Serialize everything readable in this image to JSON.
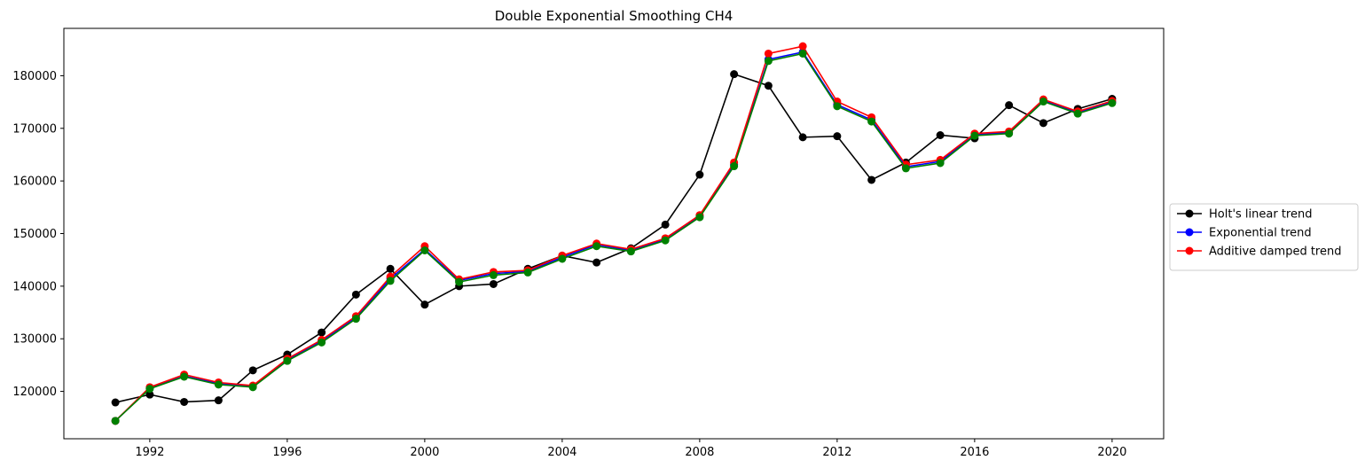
{
  "chart_data": {
    "type": "line",
    "title": "Double Exponential Smoothing CH4",
    "xlabel": "",
    "ylabel": "",
    "x": [
      1991,
      1992,
      1993,
      1994,
      1995,
      1996,
      1997,
      1998,
      1999,
      2000,
      2001,
      2002,
      2003,
      2004,
      2005,
      2006,
      2007,
      2008,
      2009,
      2010,
      2011,
      2012,
      2013,
      2014,
      2015,
      2016,
      2017,
      2018,
      2019,
      2020
    ],
    "xlim": [
      1989.5,
      2021.5
    ],
    "ylim": [
      111000,
      189000
    ],
    "x_ticks": [
      1992,
      1996,
      2000,
      2004,
      2008,
      2012,
      2016,
      2020
    ],
    "y_ticks": [
      120000,
      130000,
      140000,
      150000,
      160000,
      170000,
      180000
    ],
    "grid": false,
    "legend_position": "right, outside plot",
    "series": [
      {
        "name": "Holt's linear trend",
        "color": "#000000",
        "values": [
          117900,
          119400,
          118000,
          118300,
          124000,
          127000,
          131200,
          138400,
          143300,
          136500,
          140000,
          140400,
          143300,
          145800,
          144500,
          147200,
          151700,
          161200,
          180300,
          178100,
          168300,
          168500,
          160200,
          163500,
          168700,
          168100,
          174400,
          171000,
          173700,
          175600
        ]
      },
      {
        "name": "Exponential trend",
        "color": "#0000ff",
        "values": [
          114400,
          120600,
          122900,
          121500,
          121000,
          126000,
          129600,
          134100,
          141400,
          147000,
          141100,
          142400,
          142800,
          145500,
          147900,
          146800,
          148900,
          153300,
          163100,
          183100,
          184500,
          174500,
          171600,
          162700,
          163700,
          168800,
          169200,
          175300,
          173000,
          175000
        ]
      },
      {
        "name": "Additive damped trend",
        "color": "#ff0000",
        "values": [
          114400,
          120800,
          123200,
          121700,
          121100,
          126200,
          129800,
          134300,
          141800,
          147600,
          141300,
          142700,
          143000,
          145800,
          148100,
          147000,
          149100,
          153500,
          163500,
          184200,
          185600,
          175100,
          172100,
          163100,
          164000,
          169000,
          169400,
          175500,
          173200,
          175200
        ]
      },
      {
        "name": "",
        "color": "#008000",
        "values": [
          114400,
          120500,
          122800,
          121300,
          120800,
          125800,
          129300,
          133800,
          141000,
          146800,
          140800,
          142100,
          142600,
          145200,
          147600,
          146600,
          148700,
          153100,
          162800,
          182800,
          184200,
          174200,
          171300,
          162400,
          163400,
          168600,
          169000,
          175100,
          172800,
          174800
        ]
      }
    ]
  }
}
